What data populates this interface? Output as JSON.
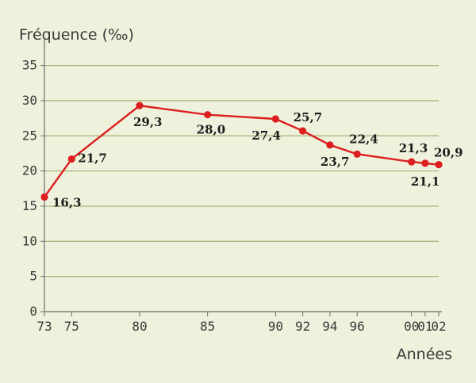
{
  "chart_data": {
    "type": "line",
    "ylabel": "Fréquence (‰)",
    "xlabel": "Années",
    "x_tick_labels": [
      "73",
      "75",
      "80",
      "85",
      "90",
      "92",
      "94",
      "96",
      "00",
      "01",
      "02"
    ],
    "x_tick_years": [
      1973,
      1975,
      1980,
      1985,
      1990,
      1992,
      1994,
      1996,
      2000,
      2001,
      2002
    ],
    "y_ticks": [
      0,
      5,
      10,
      15,
      20,
      25,
      30,
      35
    ],
    "ylim": [
      0,
      38
    ],
    "xlim": [
      1973,
      2002
    ],
    "grid": true,
    "series": [
      {
        "x": [
          1973,
          1975,
          1980,
          1985,
          1990,
          1992,
          1994,
          1996,
          2000,
          2001,
          2002
        ],
        "values": [
          16.3,
          21.7,
          29.3,
          28.0,
          27.4,
          25.7,
          23.7,
          22.4,
          21.3,
          21.1,
          20.9
        ],
        "labels": [
          "16,3",
          "21,7",
          "29,3",
          "28,0",
          "27,4",
          "25,7",
          "23,7",
          "22,4",
          "21,3",
          "21,1",
          "20,9"
        ]
      }
    ]
  },
  "colors": {
    "background": "#eef2dc",
    "grid": "#a9b57f",
    "axis": "#6b6b6b",
    "line": "#dd1e1e"
  }
}
